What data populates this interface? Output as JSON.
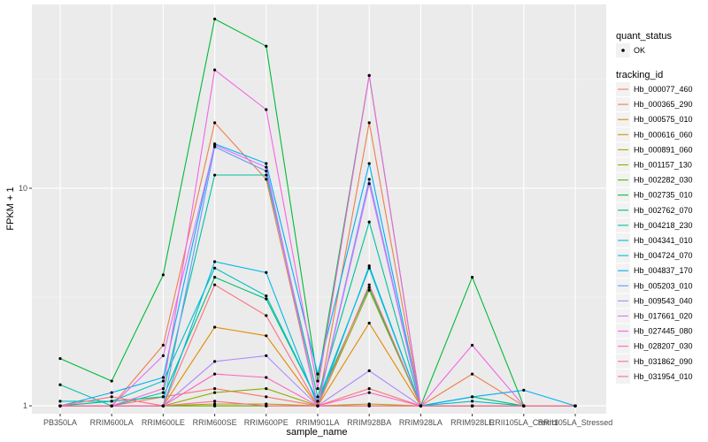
{
  "chart_data": {
    "type": "line",
    "title": "",
    "xlabel": "sample_name",
    "ylabel": "FPKM + 1",
    "y_scale": "log10",
    "ylim": [
      0.92,
      70
    ],
    "yticks": [
      1,
      10
    ],
    "ytick_labels": [
      "1",
      "10"
    ],
    "grid": true,
    "legend_position": "right",
    "categories": [
      "PB350LA",
      "RRIM600LA",
      "RRIM600LE",
      "RRIM600SE",
      "RRIM600PE",
      "RRIM901LA",
      "RRIM928BA",
      "RRIM928LA",
      "RRIM928LE",
      "RRII105LA_Control",
      "RRII105LA_Stressed"
    ],
    "shape_legend": {
      "title": "quant_status",
      "items": [
        "OK"
      ]
    },
    "color_legend_title": "tracking_id",
    "series": [
      {
        "name": "Hb_000077_460",
        "color": "#F8766D",
        "values": [
          1.0,
          1.0,
          1.1,
          1.2,
          1.1,
          1.0,
          1.2,
          1.0,
          1.0,
          1.0,
          1.0
        ]
      },
      {
        "name": "Hb_000365_290",
        "color": "#EF7F49",
        "values": [
          1.0,
          1.0,
          1.9,
          20.0,
          11.0,
          1.0,
          20.0,
          1.0,
          1.4,
          1.0,
          1.0
        ]
      },
      {
        "name": "Hb_000575_010",
        "color": "#E28A00",
        "values": [
          1.0,
          1.0,
          1.0,
          2.3,
          2.1,
          1.0,
          2.4,
          1.0,
          1.0,
          1.0,
          1.0
        ]
      },
      {
        "name": "Hb_000616_060",
        "color": "#D39200",
        "values": [
          1.0,
          1.0,
          1.0,
          1.0,
          1.0,
          1.0,
          1.0,
          1.0,
          1.0,
          1.0,
          1.0
        ]
      },
      {
        "name": "Hb_000891_060",
        "color": "#B79F00",
        "values": [
          1.0,
          1.0,
          1.0,
          1.02,
          1.02,
          1.0,
          1.02,
          1.0,
          1.0,
          1.0,
          1.0
        ]
      },
      {
        "name": "Hb_001157_130",
        "color": "#93AA00",
        "values": [
          1.0,
          1.0,
          1.0,
          1.15,
          1.2,
          1.0,
          3.4,
          1.0,
          1.0,
          1.0,
          1.0
        ]
      },
      {
        "name": "Hb_002282_030",
        "color": "#5EB300",
        "values": [
          1.0,
          1.0,
          1.0,
          1.0,
          1.0,
          1.0,
          1.0,
          1.0,
          1.0,
          1.0,
          1.0
        ]
      },
      {
        "name": "Hb_002735_010",
        "color": "#00BA38",
        "values": [
          1.65,
          1.3,
          4.0,
          60.0,
          45.0,
          1.3,
          33.0,
          1.0,
          3.9,
          1.0,
          1.0
        ]
      },
      {
        "name": "Hb_002762_070",
        "color": "#00BF74",
        "values": [
          1.0,
          1.05,
          1.1,
          3.9,
          3.1,
          1.05,
          3.5,
          1.0,
          1.1,
          1.0,
          1.0
        ]
      },
      {
        "name": "Hb_004218_230",
        "color": "#00C19F",
        "values": [
          1.25,
          1.0,
          1.15,
          11.5,
          11.5,
          1.1,
          7.0,
          1.0,
          1.0,
          1.0,
          1.0
        ]
      },
      {
        "name": "Hb_004341_010",
        "color": "#00BFC4",
        "values": [
          1.05,
          1.05,
          1.3,
          4.3,
          3.2,
          1.05,
          4.3,
          1.0,
          1.05,
          1.0,
          1.0
        ]
      },
      {
        "name": "Hb_004724_070",
        "color": "#00B9E3",
        "values": [
          1.0,
          1.0,
          1.0,
          4.6,
          4.1,
          1.0,
          4.4,
          1.0,
          1.0,
          1.0,
          1.0
        ]
      },
      {
        "name": "Hb_004837_170",
        "color": "#00ADFA",
        "values": [
          1.0,
          1.15,
          1.35,
          16.0,
          13.0,
          1.4,
          13.0,
          1.0,
          1.1,
          1.18,
          1.0
        ]
      },
      {
        "name": "Hb_005203_010",
        "color": "#619CFF",
        "values": [
          1.0,
          1.0,
          1.0,
          15.5,
          12.0,
          1.0,
          11.0,
          1.0,
          1.0,
          1.0,
          1.0
        ]
      },
      {
        "name": "Hb_009543_040",
        "color": "#AE87FF",
        "values": [
          1.0,
          1.0,
          1.0,
          1.6,
          1.7,
          1.0,
          1.45,
          1.0,
          1.0,
          1.0,
          1.0
        ]
      },
      {
        "name": "Hb_017661_020",
        "color": "#DB72FB",
        "values": [
          1.0,
          1.0,
          1.7,
          15.8,
          12.5,
          1.0,
          10.5,
          1.0,
          1.0,
          1.0,
          1.0
        ]
      },
      {
        "name": "Hb_027445_080",
        "color": "#F564E3",
        "values": [
          1.0,
          1.0,
          1.2,
          35.0,
          23.0,
          1.2,
          33.0,
          1.0,
          1.9,
          1.0,
          1.0
        ]
      },
      {
        "name": "Hb_028207_030",
        "color": "#FF61C3",
        "values": [
          1.0,
          1.0,
          1.0,
          1.4,
          1.35,
          1.0,
          1.15,
          1.0,
          1.0,
          1.0,
          1.0
        ]
      },
      {
        "name": "Hb_031862_090",
        "color": "#FF689F",
        "values": [
          1.0,
          1.0,
          1.0,
          1.05,
          1.0,
          1.0,
          1.0,
          1.0,
          1.0,
          1.0,
          1.0
        ]
      },
      {
        "name": "Hb_031954_010",
        "color": "#FC717F",
        "values": [
          1.0,
          1.1,
          1.0,
          3.6,
          2.6,
          1.0,
          3.6,
          1.0,
          1.0,
          1.0,
          1.0
        ]
      }
    ]
  }
}
